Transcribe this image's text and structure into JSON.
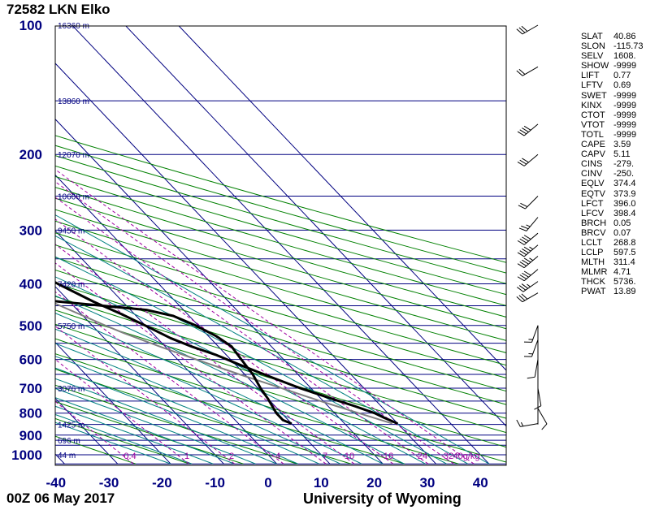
{
  "header": {
    "title": "72582 LKN Elko"
  },
  "footer": {
    "time": "00Z 06 May 2017",
    "source": "University of Wyoming"
  },
  "colors": {
    "frame": "#000000",
    "isobar": "#000080",
    "isotherm": "#000080",
    "dry_adiabat": "#008000",
    "moist_adiabat": "#008080",
    "mixing_ratio": "#a000a0",
    "sounding": "#000000",
    "parcel": "#808080",
    "axis_text": "#000080"
  },
  "chart_data": {
    "type": "skew-t",
    "pressure_levels": [
      100,
      200,
      300,
      400,
      500,
      600,
      700,
      800,
      900,
      1000
    ],
    "pressure_labels": [
      "100",
      "200",
      "300",
      "400",
      "500",
      "600",
      "700",
      "800",
      "900",
      "1000"
    ],
    "temperature_ticks": [
      -40,
      -30,
      -20,
      -10,
      0,
      10,
      20,
      30,
      40
    ],
    "temperature_labels": [
      "-40",
      "-30",
      "-20",
      "-10",
      "0",
      "10",
      "20",
      "30",
      "40"
    ],
    "xlim": [
      -40,
      45
    ],
    "ylim": [
      1050,
      100
    ],
    "height_labels": [
      {
        "p": 100,
        "text": "16360 m"
      },
      {
        "p": 150,
        "text": "13860 m"
      },
      {
        "p": 200,
        "text": "12070 m"
      },
      {
        "p": 250,
        "text": "10660 m"
      },
      {
        "p": 300,
        "text": "9450 m"
      },
      {
        "p": 400,
        "text": "7420 m"
      },
      {
        "p": 500,
        "text": "5750 m"
      },
      {
        "p": 700,
        "text": "3076 m"
      },
      {
        "p": 850,
        "text": "1425 m"
      },
      {
        "p": 925,
        "text": "696 m"
      },
      {
        "p": 1000,
        "text": "44 m"
      }
    ],
    "mixing_ratio_labels": [
      "0.4",
      "1",
      "2",
      "4",
      "7",
      "10",
      "16",
      "24",
      "32",
      "40g/kg"
    ],
    "mixing_ratio_values": [
      0.4,
      1,
      2,
      4,
      7,
      10,
      16,
      24,
      32,
      40
    ],
    "temperature_profile": [
      {
        "p": 846,
        "t": 30.0
      },
      {
        "p": 820,
        "t": 28.5
      },
      {
        "p": 800,
        "t": 27.5
      },
      {
        "p": 770,
        "t": 25.0
      },
      {
        "p": 740,
        "t": 22.0
      },
      {
        "p": 700,
        "t": 18.0
      },
      {
        "p": 660,
        "t": 14.5
      },
      {
        "p": 620,
        "t": 11.0
      },
      {
        "p": 585,
        "t": 8.0
      },
      {
        "p": 560,
        "t": 5.0
      },
      {
        "p": 535,
        "t": 2.5
      },
      {
        "p": 500,
        "t": 0.0
      },
      {
        "p": 470,
        "t": -2.5
      },
      {
        "p": 440,
        "t": -5.5
      },
      {
        "p": 400,
        "t": -9.0
      },
      {
        "p": 380,
        "t": -10.5
      },
      {
        "p": 360,
        "t": -12.5
      },
      {
        "p": 340,
        "t": -14.0
      },
      {
        "p": 320,
        "t": -17.0
      },
      {
        "p": 300,
        "t": -20.0
      },
      {
        "p": 280,
        "t": -23.0
      },
      {
        "p": 265,
        "t": -25.5
      },
      {
        "p": 250,
        "t": -28.0
      },
      {
        "p": 235,
        "t": -31.5
      },
      {
        "p": 220,
        "t": -35.0
      },
      {
        "p": 210,
        "t": -37.0
      },
      {
        "p": 200,
        "t": -39.5
      },
      {
        "p": 190,
        "t": -42.5
      },
      {
        "p": 185,
        "t": -45.0
      },
      {
        "p": 180,
        "t": -46.5
      },
      {
        "p": 175,
        "t": -46.5
      },
      {
        "p": 170,
        "t": -45.5
      },
      {
        "p": 165,
        "t": -44.5
      },
      {
        "p": 160,
        "t": -45.5
      },
      {
        "p": 155,
        "t": -47.5
      },
      {
        "p": 150,
        "t": -49.5
      },
      {
        "p": 140,
        "t": -51.5
      },
      {
        "p": 130,
        "t": -53.0
      },
      {
        "p": 120,
        "t": -53.0
      },
      {
        "p": 110,
        "t": -53.5
      },
      {
        "p": 105,
        "t": -54.5
      },
      {
        "p": 100,
        "t": -55.0
      }
    ],
    "dewpoint_profile": [
      {
        "p": 846,
        "t": 10.0
      },
      {
        "p": 830,
        "t": 9.0
      },
      {
        "p": 800,
        "t": 9.0
      },
      {
        "p": 770,
        "t": 9.5
      },
      {
        "p": 740,
        "t": 10.0
      },
      {
        "p": 700,
        "t": 10.5
      },
      {
        "p": 650,
        "t": 11.5
      },
      {
        "p": 600,
        "t": 12.0
      },
      {
        "p": 560,
        "t": 12.5
      },
      {
        "p": 530,
        "t": 11.5
      },
      {
        "p": 500,
        "t": 9.5
      },
      {
        "p": 475,
        "t": 7.0
      },
      {
        "p": 460,
        "t": 3.0
      },
      {
        "p": 440,
        "t": -12.0
      },
      {
        "p": 420,
        "t": -25.0
      },
      {
        "p": 410,
        "t": -20.5
      },
      {
        "p": 400,
        "t": -17.0
      },
      {
        "p": 390,
        "t": -14.0
      },
      {
        "p": 380,
        "t": -13.5
      },
      {
        "p": 370,
        "t": -15.0
      },
      {
        "p": 355,
        "t": -16.0
      },
      {
        "p": 340,
        "t": -19.0
      },
      {
        "p": 320,
        "t": -21.5
      },
      {
        "p": 300,
        "t": -25.0
      },
      {
        "p": 285,
        "t": -26.5
      },
      {
        "p": 270,
        "t": -28.0
      },
      {
        "p": 260,
        "t": -32.5
      },
      {
        "p": 250,
        "t": -36.5
      },
      {
        "p": 240,
        "t": -38.0
      },
      {
        "p": 225,
        "t": -40.0
      },
      {
        "p": 210,
        "t": -44.0
      },
      {
        "p": 200,
        "t": -46.0
      },
      {
        "p": 193,
        "t": -45.0
      },
      {
        "p": 185,
        "t": -47.5
      },
      {
        "p": 180,
        "t": -53.0
      },
      {
        "p": 172,
        "t": -66.0
      },
      {
        "p": 165,
        "t": -76.0
      },
      {
        "p": 160,
        "t": -78.0
      },
      {
        "p": 155,
        "t": -77.0
      },
      {
        "p": 150,
        "t": -73.0
      },
      {
        "p": 140,
        "t": -71.0
      },
      {
        "p": 125,
        "t": -70.5
      },
      {
        "p": 115,
        "t": -69.5
      },
      {
        "p": 107,
        "t": -68.0
      },
      {
        "p": 103,
        "t": -65.5
      },
      {
        "p": 100,
        "t": -64.5
      }
    ],
    "parcel_profile": [
      {
        "p": 846,
        "t": 29.0
      },
      {
        "p": 800,
        "t": 24.5
      },
      {
        "p": 750,
        "t": 19.5
      },
      {
        "p": 700,
        "t": 14.5
      },
      {
        "p": 650,
        "t": 9.0
      },
      {
        "p": 600,
        "t": 3.5
      },
      {
        "p": 560,
        "t": -1.0
      },
      {
        "p": 520,
        "t": -5.5
      },
      {
        "p": 500,
        "t": -7.5
      },
      {
        "p": 450,
        "t": -12.5
      },
      {
        "p": 400,
        "t": -17.5
      },
      {
        "p": 350,
        "t": -23.5
      },
      {
        "p": 300,
        "t": -31.0
      },
      {
        "p": 250,
        "t": -40.0
      },
      {
        "p": 200,
        "t": -51.0
      },
      {
        "p": 150,
        "t": -63.5
      },
      {
        "p": 100,
        "t": -81.0
      }
    ],
    "wind_barbs": [
      {
        "p": 100,
        "dir": 240,
        "spd": 30
      },
      {
        "p": 125,
        "dir": 240,
        "spd": 20
      },
      {
        "p": 170,
        "dir": 230,
        "spd": 40
      },
      {
        "p": 200,
        "dir": 230,
        "spd": 30
      },
      {
        "p": 250,
        "dir": 225,
        "spd": 20
      },
      {
        "p": 280,
        "dir": 220,
        "spd": 25
      },
      {
        "p": 305,
        "dir": 230,
        "spd": 40
      },
      {
        "p": 325,
        "dir": 230,
        "spd": 45
      },
      {
        "p": 345,
        "dir": 230,
        "spd": 45
      },
      {
        "p": 370,
        "dir": 230,
        "spd": 40
      },
      {
        "p": 395,
        "dir": 235,
        "spd": 35
      },
      {
        "p": 420,
        "dir": 240,
        "spd": 30
      },
      {
        "p": 500,
        "dir": 200,
        "spd": 15
      },
      {
        "p": 540,
        "dir": 200,
        "spd": 15
      },
      {
        "p": 600,
        "dir": 190,
        "spd": 10
      },
      {
        "p": 700,
        "dir": 170,
        "spd": 10
      },
      {
        "p": 780,
        "dir": 150,
        "spd": 10
      },
      {
        "p": 846,
        "dir": 260,
        "spd": 15
      }
    ]
  },
  "indices": [
    {
      "key": "SLAT",
      "value": "40.86"
    },
    {
      "key": "SLON",
      "value": "-115.73"
    },
    {
      "key": "SELV",
      "value": "1608."
    },
    {
      "key": "SHOW",
      "value": "-9999"
    },
    {
      "key": "LIFT",
      "value": "0.77"
    },
    {
      "key": "LFTV",
      "value": "0.69"
    },
    {
      "key": "SWET",
      "value": "-9999"
    },
    {
      "key": "KINX",
      "value": "-9999"
    },
    {
      "key": "CTOT",
      "value": "-9999"
    },
    {
      "key": "VTOT",
      "value": "-9999"
    },
    {
      "key": "TOTL",
      "value": "-9999"
    },
    {
      "key": "CAPE",
      "value": "3.59"
    },
    {
      "key": "CAPV",
      "value": "5.11"
    },
    {
      "key": "CINS",
      "value": "-279."
    },
    {
      "key": "CINV",
      "value": "-250."
    },
    {
      "key": "EQLV",
      "value": "374.4"
    },
    {
      "key": "EQTV",
      "value": "373.9"
    },
    {
      "key": "LFCT",
      "value": "396.0"
    },
    {
      "key": "LFCV",
      "value": "398.4"
    },
    {
      "key": "BRCH",
      "value": "0.05"
    },
    {
      "key": "BRCV",
      "value": "0.07"
    },
    {
      "key": "LCLT",
      "value": "268.8"
    },
    {
      "key": "LCLP",
      "value": "597.5"
    },
    {
      "key": "MLTH",
      "value": "311.4"
    },
    {
      "key": "MLMR",
      "value": "4.71"
    },
    {
      "key": "THCK",
      "value": "5736."
    },
    {
      "key": "PWAT",
      "value": "13.89"
    }
  ]
}
